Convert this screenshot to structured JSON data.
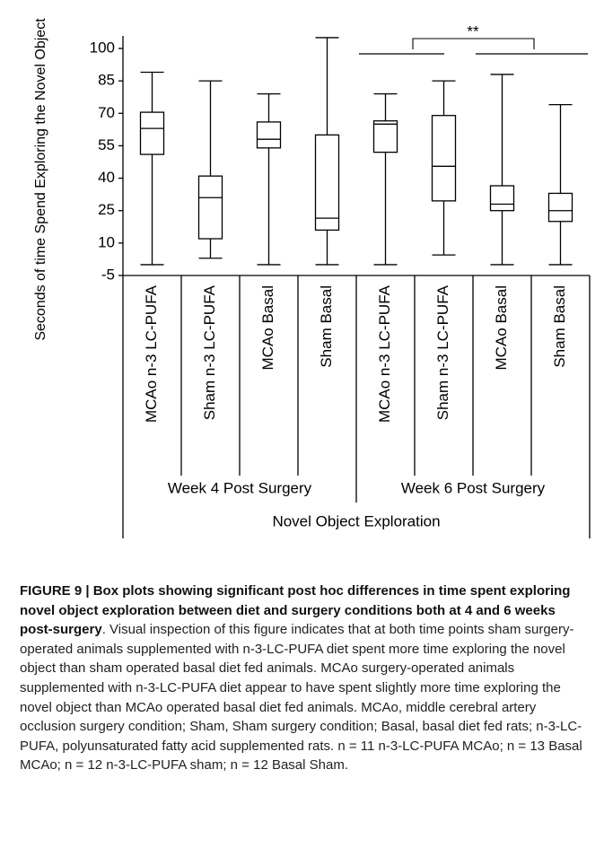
{
  "chart_data": {
    "type": "box",
    "y_label": "Seconds of time Spend Exploring the Novel Object",
    "categories": [
      "MCAo n-3 LC-PUFA",
      "Sham n-3 LC-PUFA",
      "MCAo Basal",
      "Sham Basal",
      "MCAo n-3 LC-PUFA",
      "Sham n-3 LC-PUFA",
      "MCAo Basal",
      "Sham Basal"
    ],
    "groups": [
      "Week 4 Post Surgery",
      "Week 6 Post Surgery"
    ],
    "group_title": "Novel Object Exploration",
    "boxes": [
      {
        "min": 0,
        "q1": 51,
        "median": 63,
        "q3": 70.5,
        "max": 89
      },
      {
        "min": 3,
        "q1": 12,
        "median": 31,
        "q3": 41,
        "max": 85
      },
      {
        "min": 0,
        "q1": 54,
        "median": 58,
        "q3": 66,
        "max": 79
      },
      {
        "min": 0,
        "q1": 16,
        "median": 21.5,
        "q3": 60,
        "max": 105
      },
      {
        "min": 0,
        "q1": 52,
        "median": 65,
        "q3": 66.5,
        "max": 79
      },
      {
        "min": 4.5,
        "q1": 29.5,
        "median": 45.5,
        "q3": 69,
        "max": 85
      },
      {
        "min": 0,
        "q1": 25,
        "median": 28,
        "q3": 36.5,
        "max": 88
      },
      {
        "min": 0,
        "q1": 20,
        "median": 25,
        "q3": 33,
        "max": 74
      }
    ],
    "ylim": [
      -5,
      100
    ],
    "yticks": [
      -5,
      10,
      25,
      40,
      55,
      70,
      85,
      100
    ],
    "annotation": "**"
  },
  "caption": {
    "label": "FIGURE 9 |",
    "title": "Box plots showing significant post hoc differences in time spent exploring novel object exploration between diet and surgery conditions both at 4 and 6 weeks post-surgery",
    "body": ". Visual inspection of this figure indicates that at both time points sham surgery-operated animals supplemented with n-3-LC-PUFA diet spent more time exploring the novel object than sham operated basal diet fed animals. MCAo surgery-operated animals supplemented with n-3-LC-PUFA diet appear to have spent slightly more time exploring the novel object than MCAo operated basal diet fed animals. MCAo, middle cerebral artery occlusion surgery condition; Sham, Sham surgery condition; Basal, basal diet fed rats; n-3-LC-PUFA, polyunsaturated fatty acid supplemented rats. n = 11 n-3-LC-PUFA MCAo; n = 13 Basal MCAo; n = 12 n-3-LC-PUFA sham; n = 12 Basal Sham."
  }
}
